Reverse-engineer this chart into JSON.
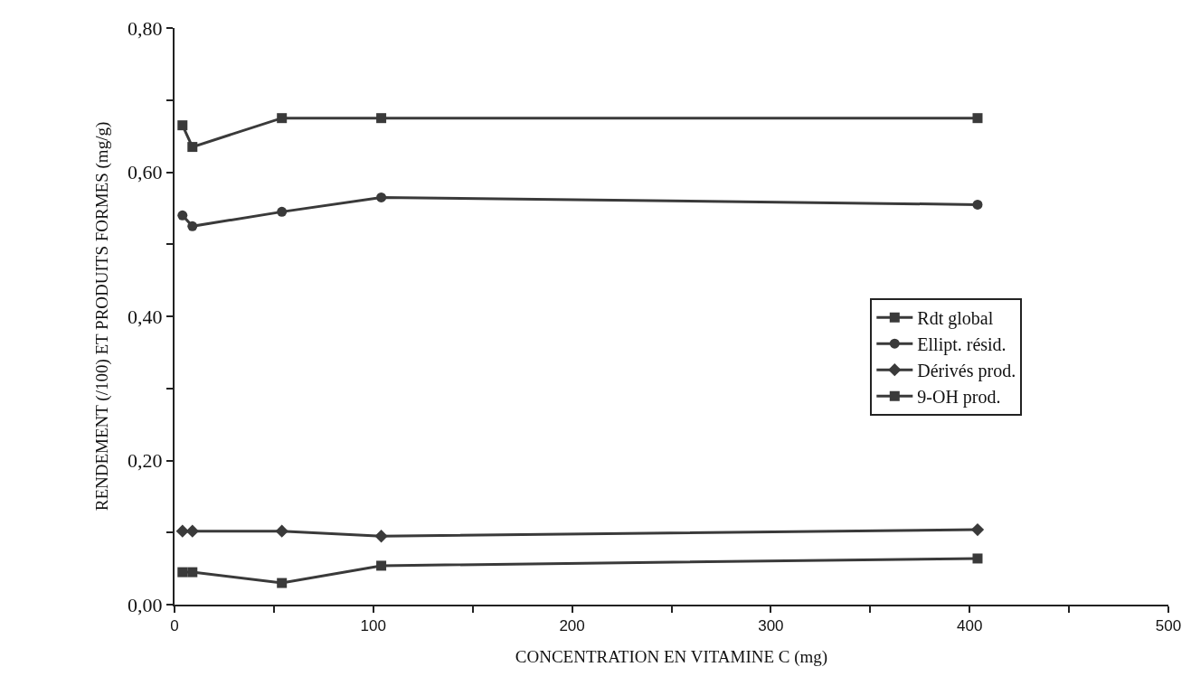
{
  "chart_data": {
    "type": "line",
    "xlabel": "CONCENTRATION EN VITAMINE C (mg)",
    "ylabel": "RENDEMENT (/100) ET PRODUITS FORMES (mg/g)",
    "x": [
      4,
      9,
      54,
      104,
      404
    ],
    "series": [
      {
        "name": "Rdt global",
        "color": "#3a3a3a",
        "marker": "square",
        "values": [
          0.665,
          0.635,
          0.675,
          0.675,
          0.675
        ]
      },
      {
        "name": "Ellipt. résid.",
        "color": "#3a3a3a",
        "marker": "circle",
        "values": [
          0.54,
          0.525,
          0.545,
          0.565,
          0.555
        ]
      },
      {
        "name": "Dérivés prod.",
        "color": "#3a3a3a",
        "marker": "diamond",
        "values": [
          0.102,
          0.102,
          0.102,
          0.095,
          0.104
        ]
      },
      {
        "name": "9-OH prod.",
        "color": "#3a3a3a",
        "marker": "square",
        "values": [
          0.045,
          0.045,
          0.03,
          0.054,
          0.064
        ]
      }
    ],
    "xlim": [
      0,
      500
    ],
    "ylim": [
      0,
      0.8
    ],
    "xticks": [
      0,
      {
        "value": 50,
        "label": null
      },
      100,
      {
        "value": 150,
        "label": null
      },
      200,
      {
        "value": 250,
        "label": null
      },
      300,
      {
        "value": 350,
        "label": null
      },
      400,
      {
        "value": 450,
        "label": null
      },
      500
    ],
    "yticks": [
      {
        "value": 0,
        "label": "0,00"
      },
      {
        "value": 0.1,
        "label": null
      },
      {
        "value": 0.2,
        "label": "0,20"
      },
      {
        "value": 0.3,
        "label": null
      },
      {
        "value": 0.4,
        "label": "0,40"
      },
      {
        "value": 0.5,
        "label": null
      },
      {
        "value": 0.6,
        "label": "0,60"
      },
      {
        "value": 0.7,
        "label": null
      },
      {
        "value": 0.8,
        "label": "0,80"
      }
    ],
    "grid": false,
    "legend": "right",
    "line_style": "solid"
  }
}
